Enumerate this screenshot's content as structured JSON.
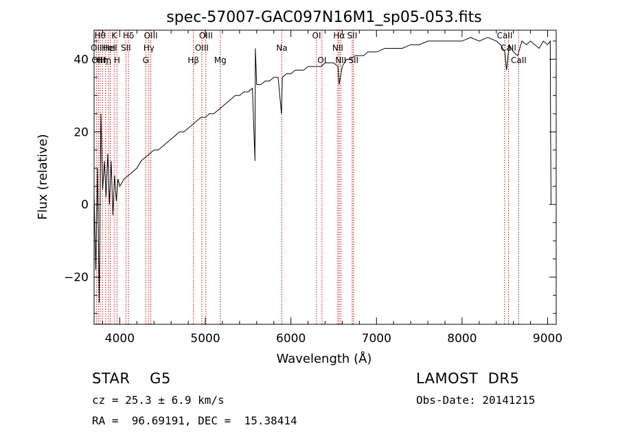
{
  "chart_data": {
    "type": "line",
    "title": "spec-57007-GAC097N16M1_sp05-053.fits",
    "xlabel": "Wavelength (Å)",
    "ylabel": "Flux (relative)",
    "xlim": [
      3700,
      9100
    ],
    "ylim": [
      -33,
      48
    ],
    "xticks": [
      4000,
      5000,
      6000,
      7000,
      8000,
      9000
    ],
    "xtick_labels": [
      "4000",
      "5000",
      "6000",
      "7000",
      "8000",
      "9000"
    ],
    "yticks": [
      -20,
      0,
      20,
      40
    ],
    "ytick_labels": [
      "−20",
      "0",
      "20",
      "40"
    ],
    "grid": false,
    "line_color": "#000000",
    "marker_color": "#cc0000",
    "series": [
      {
        "x": [
          3700,
          3720,
          3740,
          3760,
          3780,
          3800,
          3820,
          3840,
          3860,
          3880,
          3900,
          3920,
          3940,
          3960,
          3980,
          4000,
          4050,
          4100,
          4150,
          4200,
          4250,
          4300,
          4350,
          4400,
          4450,
          4500,
          4550,
          4600,
          4650,
          4700,
          4750,
          4800,
          4850,
          4900,
          4950,
          5000,
          5050,
          5100,
          5150,
          5200,
          5250,
          5300,
          5350,
          5400,
          5450,
          5500,
          5550,
          5580,
          5585,
          5600,
          5650,
          5700,
          5750,
          5800,
          5850,
          5890,
          5900,
          5950,
          6000,
          6050,
          6100,
          6150,
          6200,
          6250,
          6300,
          6350,
          6400,
          6450,
          6500,
          6550,
          6563,
          6600,
          6650,
          6700,
          6750,
          6800,
          6850,
          6900,
          6950,
          7000,
          7100,
          7200,
          7300,
          7400,
          7500,
          7600,
          7700,
          7800,
          7900,
          8000,
          8100,
          8200,
          8300,
          8400,
          8450,
          8500,
          8520,
          8550,
          8600,
          8650,
          8700,
          8750,
          8800,
          8850,
          8900,
          8950,
          9000,
          9030,
          9035,
          9040
        ],
        "y": [
          3,
          -18,
          10,
          -27,
          25,
          4,
          12,
          2,
          14,
          0,
          12,
          -3,
          8,
          1,
          7,
          5,
          7,
          8,
          9,
          10,
          12,
          13,
          14,
          15,
          15,
          16,
          17,
          18,
          19,
          20,
          20,
          21,
          22,
          23,
          24,
          24,
          25,
          25,
          26,
          27,
          28,
          29,
          30,
          30,
          31,
          31,
          32,
          12,
          43,
          33,
          33,
          34,
          34,
          35,
          35,
          25,
          35,
          36,
          36,
          37,
          37,
          37,
          38,
          38,
          38,
          38,
          39,
          39,
          39,
          38,
          33,
          38,
          40,
          40,
          41,
          41,
          41,
          42,
          42,
          42,
          43,
          43,
          43,
          44,
          44,
          45,
          45,
          45,
          45,
          45,
          46,
          45,
          46,
          45,
          44,
          42,
          37,
          44,
          42,
          41,
          45,
          44,
          45,
          44,
          43,
          45,
          44,
          45,
          18,
          0
        ]
      }
    ],
    "line_markers": [
      {
        "wave": 3727,
        "label": "OII",
        "row": 2
      },
      {
        "wave": 3750,
        "label": "OIII",
        "row": 3
      },
      {
        "wave": 3770,
        "label": "Hθ",
        "row": 1
      },
      {
        "wave": 3798,
        "label": "Hη",
        "row": 3
      },
      {
        "wave": 3835,
        "label": "Hη",
        "row": 3
      },
      {
        "wave": 3869,
        "label": "HeI",
        "row": 2
      },
      {
        "wave": 3889,
        "label": "HeI",
        "row": 2
      },
      {
        "wave": 3934,
        "label": "K",
        "row": 1
      },
      {
        "wave": 3968,
        "label": "H",
        "row": 3
      },
      {
        "wave": 4072,
        "label": "SII",
        "row": 2
      },
      {
        "wave": 4102,
        "label": "Hδ",
        "row": 1
      },
      {
        "wave": 4304,
        "label": "G",
        "row": 3
      },
      {
        "wave": 4340,
        "label": "Hγ",
        "row": 2
      },
      {
        "wave": 4363,
        "label": "OIII",
        "row": 1
      },
      {
        "wave": 4861,
        "label": "Hβ",
        "row": 3
      },
      {
        "wave": 4959,
        "label": "OIII",
        "row": 2
      },
      {
        "wave": 5007,
        "label": "OIII",
        "row": 1
      },
      {
        "wave": 5175,
        "label": "Mg",
        "row": 3
      },
      {
        "wave": 5894,
        "label": "Na",
        "row": 2
      },
      {
        "wave": 6300,
        "label": "OI",
        "row": 1
      },
      {
        "wave": 6363,
        "label": "OI",
        "row": 3
      },
      {
        "wave": 6548,
        "label": "NII",
        "row": 2
      },
      {
        "wave": 6563,
        "label": "Hα",
        "row": 1
      },
      {
        "wave": 6583,
        "label": "NII",
        "row": 3
      },
      {
        "wave": 6716,
        "label": "SII",
        "row": 1
      },
      {
        "wave": 6731,
        "label": "SII",
        "row": 3
      },
      {
        "wave": 8498,
        "label": "CaII",
        "row": 1
      },
      {
        "wave": 8542,
        "label": "CaII",
        "row": 2
      },
      {
        "wave": 8662,
        "label": "CaII",
        "row": 3
      }
    ]
  },
  "info": {
    "class_text": "STAR    G5",
    "survey_text": "LAMOST  DR5",
    "cz_text": "cz = 25.3 ± 6.9 km/s",
    "obs_date_text": "Obs-Date: 20141215",
    "coords_text": "RA =  96.69191, DEC =  15.38414"
  }
}
